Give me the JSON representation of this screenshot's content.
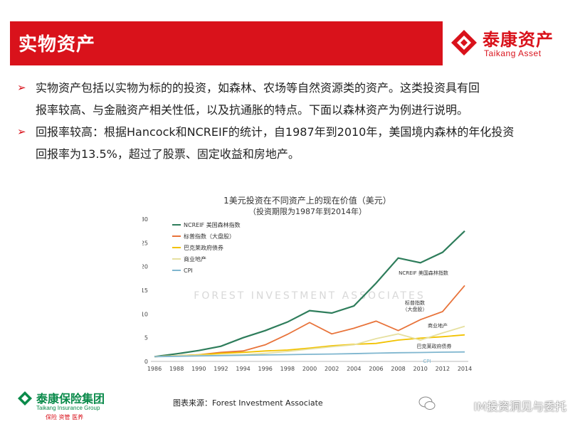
{
  "header": {
    "title": "实物资产",
    "logo_cn": "泰康资产",
    "logo_en": "Taikang Asset"
  },
  "bullets": [
    {
      "line1": "实物资产包括以实物为标的的投资，如森林、农场等自然资源类的资产。这类投资具有回",
      "line2": "报率较高、与金融资产相关性低，以及抗通胀的特点。下面以森林资产为例进行说明。"
    },
    {
      "line1": "回报率较高：根据Hancock和NCREIF的统计，自1987年到2010年，美国境内森林的年化投资",
      "line2": "回报率为13.5%，超过了股票、固定收益和房地产。"
    }
  ],
  "chart_data": {
    "type": "line",
    "title": "1美元投资在不同资产上的现在价值（美元）",
    "subtitle": "（投资期限为1987年到2014年）",
    "watermark": "FOREST INVESTMENT ASSOCIATES",
    "x": [
      1986,
      1988,
      1990,
      1992,
      1994,
      1996,
      1998,
      2000,
      2002,
      2004,
      2006,
      2008,
      2010,
      2012,
      2014
    ],
    "xticks": [
      "1986",
      "1988",
      "1990",
      "1992",
      "1994",
      "1996",
      "1998",
      "2000",
      "2002",
      "2004",
      "2006",
      "2008",
      "2010",
      "2012",
      "2014"
    ],
    "yticks": [
      "0",
      "5",
      "10",
      "15",
      "20",
      "25",
      "30"
    ],
    "ylim": [
      0,
      30
    ],
    "series": [
      {
        "name": "NCREIF 美国森林指数",
        "color": "#2e7d5b",
        "label": "NCREIF 美国森林指数",
        "values": [
          1.0,
          1.6,
          2.3,
          3.2,
          5.0,
          6.5,
          8.3,
          10.7,
          10.2,
          11.7,
          16.5,
          21.8,
          20.8,
          23.0,
          27.5
        ]
      },
      {
        "name": "标普指数（大盘股）",
        "color": "#e8733a",
        "label": "标普指数（大盘股）",
        "values": [
          1.0,
          1.2,
          1.4,
          1.9,
          2.2,
          3.5,
          5.7,
          8.2,
          5.8,
          7.0,
          8.5,
          6.5,
          8.8,
          10.5,
          16.0
        ]
      },
      {
        "name": "巴克莱政府债券",
        "color": "#f2c200",
        "label": "巴克莱政府债券",
        "values": [
          1.0,
          1.2,
          1.4,
          1.7,
          1.9,
          2.2,
          2.4,
          2.8,
          3.3,
          3.6,
          3.8,
          4.5,
          4.9,
          5.2,
          5.6
        ]
      },
      {
        "name": "商业地产",
        "color": "#e6e0a0",
        "label": "商业地产",
        "values": [
          1.0,
          1.2,
          1.3,
          1.3,
          1.4,
          1.7,
          2.1,
          2.6,
          3.1,
          3.5,
          4.8,
          5.8,
          4.5,
          6.0,
          7.4
        ]
      },
      {
        "name": "CPI",
        "color": "#7fb6cf",
        "label": "CPI",
        "values": [
          1.0,
          1.08,
          1.16,
          1.23,
          1.3,
          1.37,
          1.42,
          1.5,
          1.56,
          1.64,
          1.74,
          1.83,
          1.87,
          1.95,
          2.0
        ]
      }
    ],
    "legend_position": "top-left",
    "grid": false
  },
  "source_text": "图表来源：Forest Investment Associate",
  "footer": {
    "logo_cn": "泰康保险集团",
    "logo_en": "Taikang Insurance Group",
    "tagline": "保险 资管 医养"
  },
  "wechat_label": "IM投资洞见与委托",
  "colors": {
    "brand_red": "#d9121b",
    "brand_green": "#0a8a4a"
  }
}
